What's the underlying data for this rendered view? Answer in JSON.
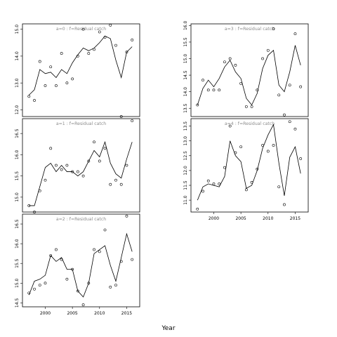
{
  "chart_data": {
    "type": "line",
    "xlabel": "Year",
    "x_ticks": [
      2000,
      2005,
      2010,
      2015
    ],
    "x_range": [
      1995.8,
      2017.4
    ],
    "panels": [
      {
        "title": "a=0 : f=Residual catch",
        "ylim": [
          11.75,
          15.2
        ],
        "y_ticks": [
          12.0,
          13.0,
          14.0,
          15.0
        ],
        "y_tick_labels": [
          "12.0",
          "13.0",
          "14.0",
          "15.0"
        ],
        "line": {
          "x": [
            1997,
            1998,
            1999,
            2000,
            2001,
            2002,
            2003,
            2004,
            2005,
            2006,
            2007,
            2008,
            2009,
            2010,
            2011,
            2012,
            2013,
            2014,
            2015,
            2016
          ],
          "y": [
            12.55,
            12.75,
            13.5,
            13.35,
            13.4,
            13.2,
            13.5,
            13.35,
            13.75,
            14.05,
            14.3,
            14.2,
            14.3,
            14.5,
            14.75,
            14.65,
            13.85,
            13.2,
            14.15,
            14.35
          ]
        },
        "points": {
          "x": [
            1997,
            1998,
            1999,
            2000,
            2001,
            2002,
            2003,
            2004,
            2005,
            2006,
            2007,
            2008,
            2009,
            2010,
            2011,
            2012,
            2013,
            2014,
            2015,
            2016
          ],
          "y": [
            12.5,
            12.35,
            13.8,
            12.9,
            13.6,
            12.9,
            14.1,
            13.0,
            13.15,
            14.0,
            15.0,
            14.1,
            14.25,
            14.9,
            14.7,
            15.15,
            14.4,
            11.75,
            14.15,
            14.6
          ]
        }
      },
      {
        "title": "a=3 : f=Residual catch",
        "ylim": [
          13.25,
          16.05
        ],
        "y_ticks": [
          13.5,
          14.0,
          14.5,
          15.0,
          15.5,
          16.0
        ],
        "y_tick_labels": [
          "13.5",
          "14.0",
          "14.5",
          "15.0",
          "15.5",
          "16.0"
        ],
        "line": {
          "x": [
            1997,
            1998,
            1999,
            2000,
            2001,
            2002,
            2003,
            2004,
            2005,
            2006,
            2007,
            2008,
            2009,
            2010,
            2011,
            2012,
            2013,
            2014,
            2015,
            2016
          ],
          "y": [
            13.6,
            14.1,
            14.35,
            14.15,
            14.4,
            14.75,
            14.95,
            14.6,
            14.4,
            13.8,
            13.6,
            13.95,
            14.7,
            15.1,
            15.25,
            14.2,
            14.0,
            14.6,
            15.4,
            14.8
          ]
        },
        "points": {
          "x": [
            1997,
            1998,
            1999,
            2000,
            2001,
            2002,
            2003,
            2004,
            2005,
            2006,
            2007,
            2008,
            2009,
            2010,
            2011,
            2012,
            2013,
            2014,
            2015,
            2016
          ],
          "y": [
            13.6,
            14.35,
            14.05,
            14.05,
            14.05,
            14.9,
            15.0,
            14.8,
            14.25,
            13.55,
            13.55,
            14.05,
            15.0,
            15.25,
            15.9,
            13.9,
            13.3,
            14.2,
            15.75,
            14.15
          ]
        }
      },
      {
        "title": "a=1 : f=Residual catch",
        "ylim": [
          14.65,
          16.85
        ],
        "y_ticks": [
          15.0,
          15.5,
          16.0,
          16.5
        ],
        "y_tick_labels": [
          "15.0",
          "15.5",
          "16.0",
          "16.5"
        ],
        "line": {
          "x": [
            1997,
            1998,
            1999,
            2000,
            2001,
            2002,
            2003,
            2004,
            2005,
            2006,
            2007,
            2008,
            2009,
            2010,
            2011,
            2012,
            2013,
            2014,
            2015,
            2016
          ],
          "y": [
            14.8,
            14.8,
            15.25,
            15.7,
            15.8,
            15.6,
            15.75,
            15.6,
            15.6,
            15.5,
            15.6,
            15.85,
            16.1,
            15.95,
            16.3,
            15.8,
            15.55,
            15.45,
            15.9,
            16.3
          ]
        },
        "points": {
          "x": [
            1997,
            1998,
            1999,
            2000,
            2001,
            2002,
            2003,
            2004,
            2005,
            2006,
            2007,
            2008,
            2009,
            2010,
            2011,
            2012,
            2013,
            2014,
            2015,
            2016
          ],
          "y": [
            14.8,
            14.65,
            15.15,
            15.4,
            16.15,
            15.75,
            15.65,
            15.75,
            15.6,
            15.6,
            15.5,
            15.85,
            16.3,
            15.85,
            16.15,
            15.3,
            15.4,
            15.3,
            15.75,
            16.8
          ]
        }
      },
      {
        "title": "a=4 : f=Residual catch",
        "ylim": [
          10.6,
          13.75
        ],
        "y_ticks": [
          11.0,
          11.5,
          12.0,
          12.5,
          13.0,
          13.5
        ],
        "y_tick_labels": [
          "11.0",
          "11.5",
          "12.0",
          "12.5",
          "13.0",
          "13.5"
        ],
        "line": {
          "x": [
            1997,
            1998,
            1999,
            2000,
            2001,
            2002,
            2003,
            2004,
            2005,
            2006,
            2007,
            2008,
            2009,
            2010,
            2011,
            2012,
            2013,
            2014,
            2015,
            2016
          ],
          "y": [
            11.0,
            11.45,
            11.55,
            11.5,
            11.45,
            11.8,
            13.0,
            12.5,
            12.3,
            11.4,
            11.5,
            12.0,
            12.75,
            13.2,
            13.55,
            12.25,
            11.15,
            12.45,
            12.8,
            11.9
          ]
        },
        "points": {
          "x": [
            1997,
            1998,
            1999,
            2000,
            2001,
            2002,
            2003,
            2004,
            2005,
            2006,
            2007,
            2008,
            2009,
            2010,
            2011,
            2012,
            2013,
            2014,
            2015,
            2016
          ],
          "y": [
            10.7,
            11.3,
            11.65,
            11.55,
            11.55,
            12.1,
            13.5,
            12.6,
            12.8,
            11.35,
            11.6,
            12.05,
            12.85,
            12.65,
            12.85,
            11.45,
            10.85,
            13.65,
            13.4,
            12.4
          ]
        }
      },
      {
        "title": "a=2 : f=Residual catch",
        "ylim": [
          14.4,
          16.75
        ],
        "y_ticks": [
          14.5,
          15.0,
          15.5,
          16.0,
          16.5
        ],
        "y_tick_labels": [
          "14.5",
          "15.0",
          "15.5",
          "16.0",
          "16.5"
        ],
        "line": {
          "x": [
            1997,
            1998,
            1999,
            2000,
            2001,
            2002,
            2003,
            2004,
            2005,
            2006,
            2007,
            2008,
            2009,
            2010,
            2011,
            2012,
            2013,
            2014,
            2015,
            2016
          ],
          "y": [
            14.7,
            15.05,
            15.1,
            15.2,
            15.7,
            15.55,
            15.65,
            15.35,
            15.35,
            14.8,
            14.65,
            15.0,
            15.75,
            15.85,
            15.95,
            15.45,
            15.05,
            15.65,
            16.25,
            15.8
          ]
        },
        "points": {
          "x": [
            1997,
            1998,
            1999,
            2000,
            2001,
            2002,
            2003,
            2004,
            2005,
            2006,
            2007,
            2008,
            2009,
            2010,
            2011,
            2012,
            2013,
            2014,
            2015,
            2016
          ],
          "y": [
            14.75,
            14.85,
            14.95,
            15.0,
            15.7,
            15.85,
            15.6,
            15.1,
            15.35,
            14.8,
            14.45,
            15.0,
            15.85,
            15.8,
            16.35,
            14.9,
            14.95,
            15.55,
            16.7,
            15.6
          ]
        }
      }
    ]
  }
}
